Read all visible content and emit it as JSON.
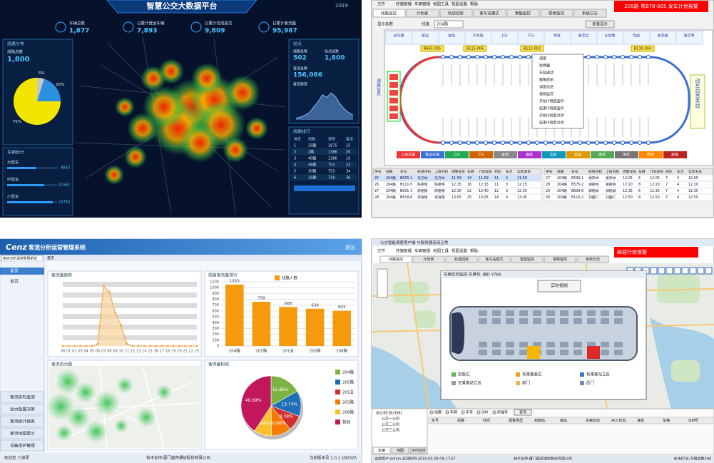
{
  "dashboard": {
    "title": "智慧公交大数据平台",
    "date": "2019",
    "stats": [
      {
        "label": "车辆总数",
        "value": "1,877"
      },
      {
        "label": "日累计营运车辆",
        "value": "7,893"
      },
      {
        "label": "日累计完成班次",
        "value": "9,809"
      },
      {
        "label": "日累计客流量",
        "value": "95,987"
      }
    ],
    "line_panel": {
      "title": "线路分布",
      "caption": "线路总数",
      "total": "1,800"
    },
    "pie": {
      "type": "pie",
      "values": [
        5,
        20,
        75
      ],
      "value_labels": [
        "5%",
        "20%",
        "75%"
      ],
      "colors": [
        "#c8c8c8",
        "#2d8fe0",
        "#f2e600"
      ]
    },
    "vehicle_panel": {
      "title": "车辆统计",
      "rows": [
        {
          "label": "大型车",
          "value": "9543"
        },
        {
          "label": "中型车",
          "value": "11562"
        },
        {
          "label": "小型车",
          "value": "22743"
        }
      ]
    },
    "station_panel": {
      "title": "站点",
      "items": [
        {
          "label": "线路总数",
          "value": "502"
        },
        {
          "label": "站点总数",
          "value": "1,800"
        },
        {
          "label": "客流总数",
          "value": "156,066"
        }
      ]
    },
    "flow": {
      "type": "area",
      "title": "客流趋势",
      "values": [
        2,
        3,
        5,
        8,
        14,
        20,
        28,
        25,
        30,
        26,
        18,
        12,
        8,
        5
      ],
      "ylim": [
        0,
        35
      ],
      "color": "#7fb8ff"
    },
    "ranking": {
      "title": "线路排行",
      "headers": [
        "排名",
        "线路",
        "里程",
        "客流"
      ],
      "rows": [
        [
          "1",
          "25路",
          "1675",
          "15"
        ],
        [
          "2",
          "2路",
          "1386",
          "20"
        ],
        [
          "3",
          "40路",
          "1386",
          "19"
        ],
        [
          "4",
          "46路",
          "753",
          "23"
        ],
        [
          "5",
          "30路",
          "753",
          "34"
        ],
        [
          "6",
          "26路",
          "718",
          "36"
        ]
      ]
    }
  },
  "dispatch": {
    "menu": [
      "文件",
      "终端管理",
      "车辆管理",
      "地图工具",
      "视图设置",
      "帮助"
    ],
    "alarm": "205路 粤B78-005 发车计划报警",
    "tabs": [
      "线路监控",
      "计划表",
      "轨迹回放",
      "客车站模式",
      "智能监控",
      "视频监控",
      "系统日志"
    ],
    "toolbar": {
      "label": "显示条数",
      "route_label": "线路",
      "route": "204路",
      "button": "多重显示"
    },
    "summary_headers": [
      "总车辆",
      "营运",
      "在线",
      "不在线",
      "上行",
      "下行",
      "待发",
      "未定位",
      "计划数",
      "完成",
      "未完成",
      "准点率"
    ],
    "side_label": "调度信息",
    "terminal": "动车站首末站",
    "buses": [
      "B661-005",
      "B115-006",
      "B112-002",
      "B110-004"
    ],
    "menu_popup": [
      "调度",
      "收费器",
      "车载通话",
      "图像抓拍",
      "调度信息",
      "视频监控",
      "开始IP调度监听",
      "结束IP调度监听",
      "开始IP调度对讲",
      "结束IP调度对讲"
    ],
    "status_legend": [
      "上线车辆",
      "营运车辆",
      "上行",
      "下行",
      "进场",
      "维修",
      "包车",
      "加油",
      "保养",
      "停车",
      "待发",
      "故障"
    ],
    "table_headers": [
      "序号",
      "线路",
      "车号",
      "班组司机",
      "上班司机",
      "调整发车",
      "车辆",
      "计划发车",
      "到达",
      "车次",
      "实际发车"
    ],
    "left_rows": [
      [
        "25",
        "204路",
        "B655-1",
        "马万林",
        "马万林",
        "11:59",
        "14",
        "11:59",
        "11",
        "2",
        "11:59"
      ],
      [
        "26",
        "204路",
        "B111-5",
        "陈德辉",
        "陈德辉",
        "12:15",
        "16",
        "12:15",
        "11",
        "3",
        "12:15"
      ],
      [
        "27",
        "204路",
        "B601-3",
        "周德锦",
        "周德锦",
        "12:30",
        "22",
        "12:40",
        "12",
        "3",
        "12:30"
      ],
      [
        "28",
        "204路",
        "B818-6",
        "李海建",
        "李海建",
        "13:05",
        "25",
        "13:05",
        "14",
        "4",
        "13:05"
      ]
    ],
    "right_rows": [
      [
        "27",
        "204路",
        "B599-1",
        "谢宗林",
        "谢宗林",
        "12:05",
        "6",
        "12:05",
        "7",
        "4",
        "12:05"
      ],
      [
        "28",
        "204路",
        "B575-2",
        "谢德林",
        "谢德林",
        "12:20",
        "8",
        "12:20",
        "7",
        "4",
        "12:20"
      ],
      [
        "29",
        "204路",
        "B609-6",
        "郭德斌",
        "郭德斌",
        "12:35",
        "6",
        "12:35",
        "7",
        "4",
        "12:35"
      ],
      [
        "30",
        "204路",
        "B110-2",
        "刘国仁",
        "刘国仁",
        "12:50",
        "8",
        "12:50",
        "7",
        "4",
        "12:50"
      ]
    ]
  },
  "passenger": {
    "logo": "Cenz",
    "title": "客流分析运营管理系统",
    "logout": "退出",
    "tab": "客流分析运营管理系统",
    "home_tab": "首页",
    "nav": [
      "首页",
      "客流实时监测",
      "运力配置决策",
      "客流统计报表",
      "客流地图展示",
      "设备维护管理"
    ],
    "user": "欢迎您 三道琴",
    "support": "技术支持:厦门盛邦通信股份有限公司",
    "version": "当前版本号 1.0.1.180325",
    "trend": {
      "type": "area",
      "title": "客流量趋势",
      "categories": [
        "00",
        "01",
        "02",
        "03",
        "04",
        "05",
        "06",
        "07",
        "08",
        "09",
        "10",
        "11",
        "12",
        "13",
        "14",
        "15",
        "16",
        "17",
        "18",
        "19",
        "20",
        "21",
        "22",
        "23"
      ],
      "values": [
        0,
        0,
        0,
        0,
        0,
        0,
        0.05,
        1.45,
        1.3,
        0.8,
        0.5,
        0.05,
        0,
        0,
        0,
        0,
        0,
        0,
        0,
        0,
        0,
        0,
        0,
        0
      ],
      "ylim": [
        0,
        1.6
      ],
      "color": "#f0a040",
      "fill": "#f7d49c"
    },
    "ranking": {
      "type": "bar",
      "title": "线路客流量排行",
      "legend": "线路人数",
      "categories": [
        "204路",
        "205路",
        "201支",
        "203路",
        "208路"
      ],
      "values": [
        1053,
        758,
        668,
        638,
        603
      ],
      "color": "#f59a0c",
      "ylim": [
        0,
        1100
      ],
      "yticks": [
        0,
        100,
        200,
        300,
        400,
        500,
        600,
        700,
        800,
        900,
        1000,
        1100
      ]
    },
    "heatmap_title": "客流热力图",
    "share": {
      "type": "pie",
      "title": "客流量构成",
      "categories": [
        "204路",
        "205路",
        "201支",
        "203路",
        "208路",
        "其他"
      ],
      "values": [
        16.86,
        13.74,
        8.38,
        10.68,
        9.65,
        40.69
      ],
      "value_labels": [
        "16.86%",
        "13.74%",
        "8.38%",
        "10.68%",
        "9.65%",
        "40.69%"
      ],
      "colors": [
        "#7cb342",
        "#1e6fb8",
        "#d32f2f",
        "#f57c00",
        "#fbc02d",
        "#c2185b"
      ]
    }
  },
  "monitor": {
    "title": "公交智能调度客户端 与服务器连接正常",
    "menu": [
      "文件",
      "终端管理",
      "车辆管理",
      "地图工具",
      "视图设置",
      "帮助"
    ],
    "alarm": "超速行驶报警",
    "tabs": [
      "线路监控",
      "计划表",
      "轨迹回放",
      "客车站模式",
      "智能监控",
      "视频监控",
      "系统日志"
    ],
    "dialog_title": "车辆实时监控-车牌号: 闽D Y789",
    "video_button": "实时视频",
    "legend": [
      {
        "label": "空座位",
        "color": "#5fb85a"
      },
      {
        "label": "有乘客座位",
        "color": "#f0a020"
      },
      {
        "label": "有乘客站立区",
        "color": "#3d78c8"
      },
      {
        "label": "无乘客站立区",
        "color": "#9a9a9a"
      },
      {
        "label": "前门",
        "color": "#e8b84a"
      },
      {
        "label": "后门",
        "color": "#6d8fc0"
      }
    ],
    "tree": [
      "总公司(36/398)",
      "公交一公司",
      "公交二公司",
      "公交三公司"
    ],
    "search": [
      "线路",
      "车牌",
      "车号",
      "SIM",
      "终端号"
    ],
    "search_button": "查询",
    "table_headers": [
      "车号",
      "线路",
      "时间",
      "报警类型",
      "到离站",
      "离站",
      "车辆状态",
      "ACC状态",
      "速度",
      "车辆",
      "SIM号"
    ],
    "bottom_tabs": [
      "车辆",
      "地图",
      "实时监控"
    ],
    "status": "当前用户:admin 启动时间:2019-04-08 09:17:57",
    "support": "技术支持:厦门盛邦通信股份有限公司",
    "online": "在线87台,车辆总数398"
  }
}
